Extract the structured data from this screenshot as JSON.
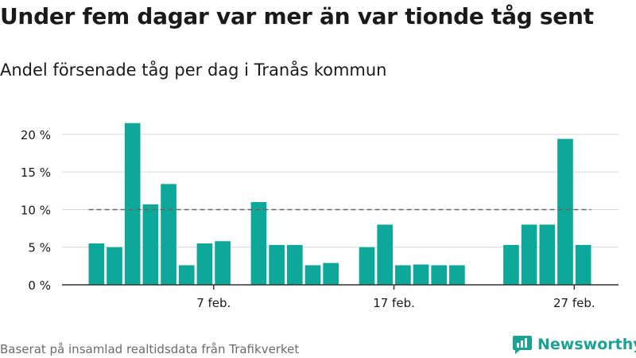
{
  "title": "Under fem dagar var mer än var tionde tåg sent",
  "subtitle": "Andel försenade tåg per dag i Tranås kommun",
  "source": "Baserat på insamlad realtidsdata från Trafikverket",
  "brand": {
    "name": "Newsworthy",
    "icon": "newsworthy-logo-icon",
    "color": "#1aa394"
  },
  "colors": {
    "bar": "#0ea89a",
    "grid": "#d6d6d6",
    "axis": "#333333",
    "reference_line": "#666666",
    "tick_text": "#1a1a1a"
  },
  "chart_data": {
    "type": "bar",
    "x": [
      1,
      2,
      3,
      4,
      5,
      6,
      7,
      8,
      10,
      11,
      12,
      13,
      14,
      16,
      17,
      18,
      19,
      20,
      21,
      24,
      25,
      26,
      27,
      28
    ],
    "values": [
      5.5,
      5.0,
      21.5,
      10.7,
      13.4,
      2.6,
      5.5,
      5.8,
      11.0,
      5.3,
      5.3,
      2.6,
      2.9,
      5.0,
      8.0,
      2.6,
      2.7,
      2.6,
      2.6,
      5.3,
      8.0,
      8.0,
      19.4,
      5.3
    ],
    "xlim": [
      0,
      29
    ],
    "ylim": [
      0,
      22
    ],
    "y_ticks": [
      0,
      5,
      10,
      15,
      20
    ],
    "y_tick_labels": [
      "0 %",
      "5 %",
      "10 %",
      "15 %",
      "20 %"
    ],
    "x_ticks": [
      7,
      17,
      27
    ],
    "x_tick_labels": [
      "7 feb.",
      "17 feb.",
      "27 feb."
    ],
    "reference_line": {
      "y": 10,
      "from": 1,
      "to": 28,
      "style": "dashed"
    },
    "grid": true
  }
}
